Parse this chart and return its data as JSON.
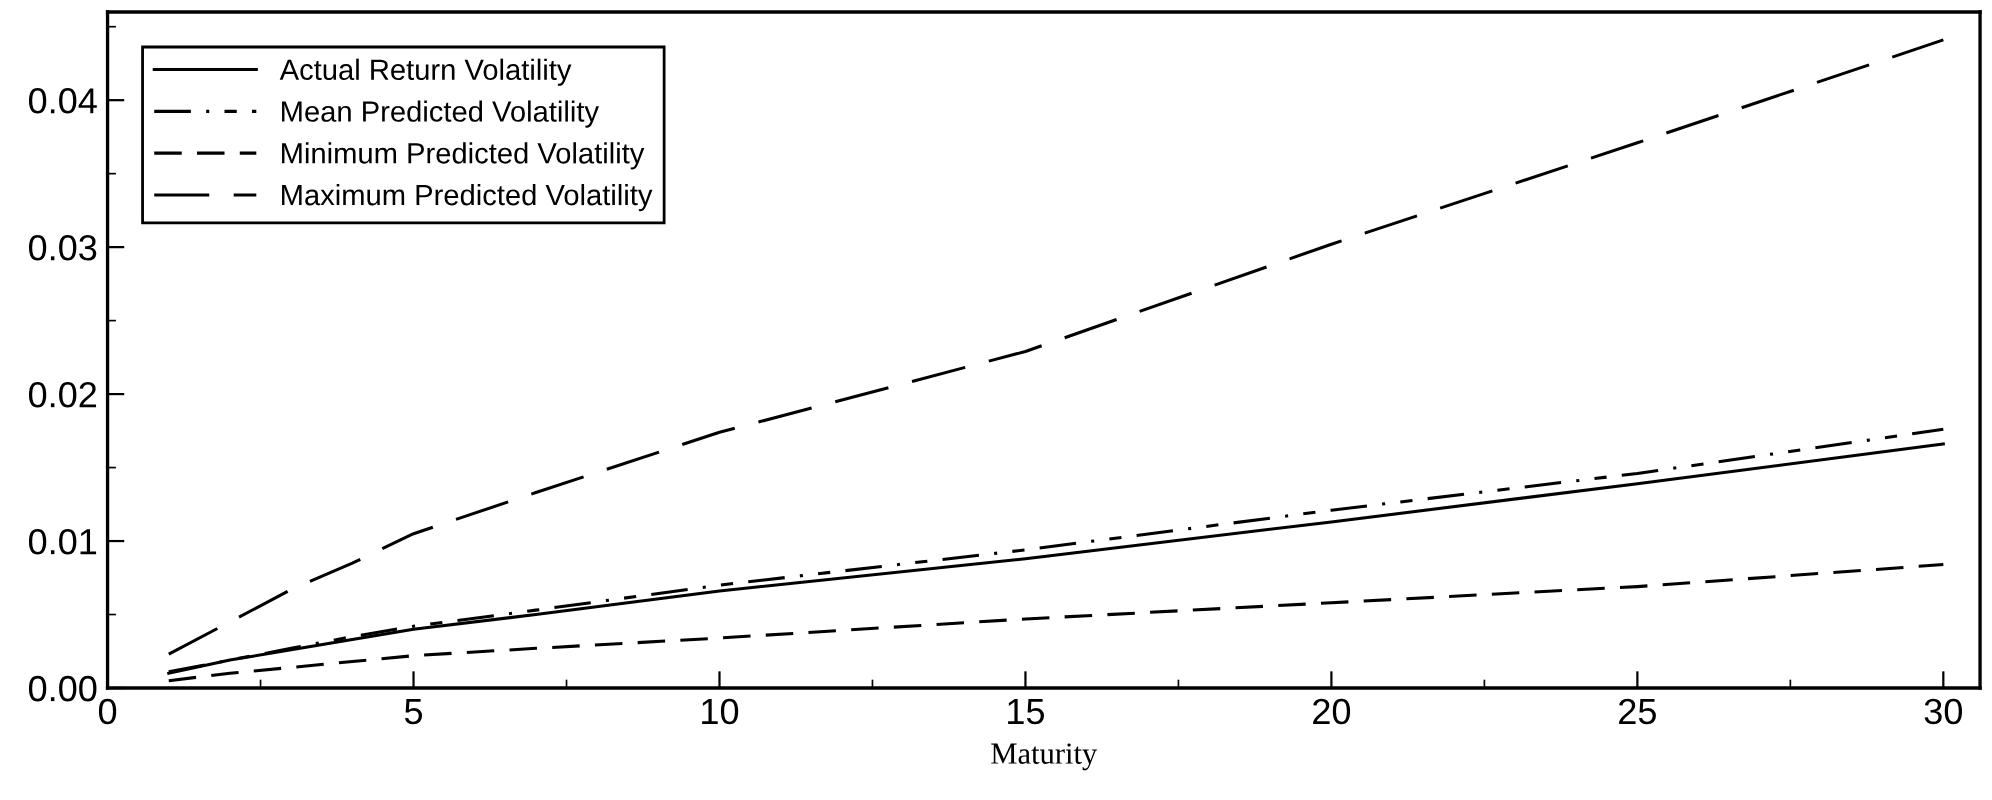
{
  "chart_data": {
    "type": "line",
    "xlabel": "Maturity",
    "x": [
      1,
      2,
      3,
      4,
      5,
      7,
      10,
      15,
      20,
      25,
      30
    ],
    "xlim": [
      0,
      30.6
    ],
    "xticks": [
      0,
      5,
      10,
      15,
      20,
      25,
      30
    ],
    "ylim": [
      0,
      0.046
    ],
    "yticks": [
      {
        "value": 0,
        "label": "0.00"
      },
      {
        "value": 0.01,
        "label": "0.01"
      },
      {
        "value": 0.02,
        "label": "0.02"
      },
      {
        "value": 0.03,
        "label": "0.03"
      },
      {
        "value": 0.04,
        "label": "0.04"
      }
    ],
    "grid": false,
    "legend": "top left",
    "series": [
      {
        "name": "Actual Return Volatility",
        "color": "#000000",
        "line_style": "solid",
        "values": [
          0.001,
          0.0019,
          0.0026,
          0.0033,
          0.004,
          0.005,
          0.0066,
          0.0088,
          0.0113,
          0.0139,
          0.0166
        ]
      },
      {
        "name": "Mean Predicted Volatility",
        "color": "#000000",
        "line_style": "dashdot",
        "values": [
          0.0011,
          0.0019,
          0.0027,
          0.0035,
          0.0042,
          0.0053,
          0.007,
          0.0094,
          0.0121,
          0.0146,
          0.0176
        ]
      },
      {
        "name": "Minimum Predicted Volatility",
        "color": "#000000",
        "line_style": "dashed",
        "values": [
          0.0005,
          0.001,
          0.0014,
          0.0018,
          0.0022,
          0.0027,
          0.0034,
          0.0047,
          0.0058,
          0.0069,
          0.0084
        ]
      },
      {
        "name": "Maximum Predicted Volatility",
        "color": "#000000",
        "line_style": "longdash",
        "values": [
          0.0023,
          0.0045,
          0.0067,
          0.0085,
          0.0105,
          0.0133,
          0.0174,
          0.0229,
          0.0302,
          0.0371,
          0.0441
        ]
      }
    ]
  }
}
